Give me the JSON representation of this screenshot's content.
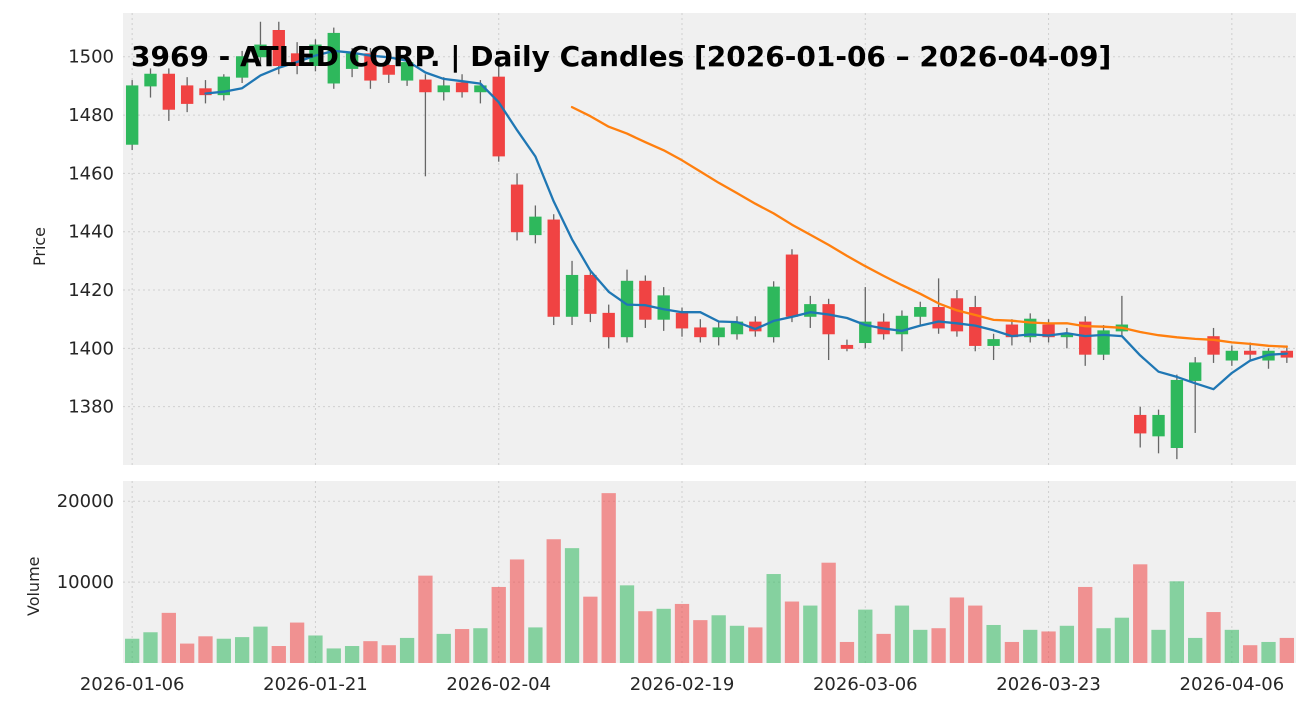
{
  "title": "3969 - ATLED CORP. | Daily Candles [2026-01-06 – 2026-04-09]",
  "price_axis_label": "Price",
  "volume_axis_label": "Volume",
  "colors": {
    "up": "#2eb85c",
    "down": "#f04343",
    "ma_short": "#1f77b4",
    "ma_long": "#ff7f0e",
    "grid": "#cfcfcf",
    "plot_bg": "#f0f0f0",
    "text": "#262626"
  },
  "chart_data": {
    "type": "candlestick",
    "title": "3969 - ATLED CORP. | Daily Candles [2026-01-06 – 2026-04-09]",
    "ylabel_price": "Price",
    "ylabel_volume": "Volume",
    "x_tick_labels": [
      "2026-01-06",
      "2026-01-21",
      "2026-02-04",
      "2026-02-19",
      "2026-03-06",
      "2026-03-23",
      "2026-04-06"
    ],
    "price_ticks": [
      1380,
      1400,
      1420,
      1440,
      1460,
      1480,
      1500
    ],
    "volume_ticks": [
      10000,
      20000
    ],
    "price_range": [
      1360,
      1515
    ],
    "volume_range": [
      0,
      22500
    ],
    "ma_short_window": 5,
    "ma_long_window": 25,
    "grid": true,
    "dates": [
      "2026-01-06",
      "2026-01-07",
      "2026-01-08",
      "2026-01-09",
      "2026-01-13",
      "2026-01-14",
      "2026-01-15",
      "2026-01-16",
      "2026-01-19",
      "2026-01-20",
      "2026-01-21",
      "2026-01-22",
      "2026-01-23",
      "2026-01-26",
      "2026-01-27",
      "2026-01-28",
      "2026-01-29",
      "2026-01-30",
      "2026-02-02",
      "2026-02-03",
      "2026-02-04",
      "2026-02-05",
      "2026-02-06",
      "2026-02-09",
      "2026-02-10",
      "2026-02-12",
      "2026-02-13",
      "2026-02-16",
      "2026-02-17",
      "2026-02-18",
      "2026-02-19",
      "2026-02-20",
      "2026-02-24",
      "2026-02-25",
      "2026-02-26",
      "2026-02-27",
      "2026-03-02",
      "2026-03-03",
      "2026-03-04",
      "2026-03-05",
      "2026-03-06",
      "2026-03-09",
      "2026-03-10",
      "2026-03-11",
      "2026-03-12",
      "2026-03-13",
      "2026-03-16",
      "2026-03-17",
      "2026-03-18",
      "2026-03-19",
      "2026-03-23",
      "2026-03-24",
      "2026-03-25",
      "2026-03-26",
      "2026-03-27",
      "2026-03-30",
      "2026-03-31",
      "2026-04-01",
      "2026-04-02",
      "2026-04-03",
      "2026-04-06",
      "2026-04-07",
      "2026-04-08",
      "2026-04-09"
    ],
    "ohlc": [
      [
        1470,
        1492,
        1468,
        1490
      ],
      [
        1490,
        1496,
        1486,
        1494
      ],
      [
        1494,
        1496,
        1478,
        1482
      ],
      [
        1490,
        1493,
        1481,
        1484
      ],
      [
        1489,
        1492,
        1484,
        1487
      ],
      [
        1487,
        1494,
        1485,
        1493
      ],
      [
        1493,
        1502,
        1491,
        1500
      ],
      [
        1500,
        1512,
        1497,
        1504
      ],
      [
        1509,
        1512,
        1494,
        1497
      ],
      [
        1501,
        1505,
        1494,
        1497
      ],
      [
        1497,
        1506,
        1495,
        1504
      ],
      [
        1491,
        1510,
        1489,
        1508
      ],
      [
        1496,
        1503,
        1493,
        1501
      ],
      [
        1501,
        1503,
        1489,
        1492
      ],
      [
        1497,
        1500,
        1491,
        1494
      ],
      [
        1492,
        1500,
        1490,
        1498
      ],
      [
        1492,
        1494,
        1459,
        1488
      ],
      [
        1488,
        1493,
        1485,
        1490
      ],
      [
        1491,
        1494,
        1486,
        1488
      ],
      [
        1488,
        1492,
        1484,
        1490
      ],
      [
        1493,
        1497,
        1464,
        1466
      ],
      [
        1456,
        1460,
        1437,
        1440
      ],
      [
        1439,
        1449,
        1436,
        1445
      ],
      [
        1444,
        1446,
        1408,
        1411
      ],
      [
        1411,
        1430,
        1408,
        1425
      ],
      [
        1425,
        1427,
        1409,
        1412
      ],
      [
        1412,
        1415,
        1400,
        1404
      ],
      [
        1404,
        1427,
        1402,
        1423
      ],
      [
        1423,
        1425,
        1407,
        1410
      ],
      [
        1410,
        1421,
        1406,
        1418
      ],
      [
        1412,
        1414,
        1404,
        1407
      ],
      [
        1407,
        1410,
        1402,
        1404
      ],
      [
        1404,
        1409,
        1401,
        1407
      ],
      [
        1405,
        1411,
        1403,
        1409
      ],
      [
        1409,
        1411,
        1404,
        1406
      ],
      [
        1404,
        1423,
        1402,
        1421
      ],
      [
        1432,
        1434,
        1409,
        1411
      ],
      [
        1411,
        1418,
        1407,
        1415
      ],
      [
        1415,
        1417,
        1396,
        1405
      ],
      [
        1401,
        1403,
        1399,
        1400
      ],
      [
        1402,
        1421,
        1400,
        1409
      ],
      [
        1409,
        1412,
        1403,
        1405
      ],
      [
        1405,
        1413,
        1399,
        1411
      ],
      [
        1411,
        1416,
        1408,
        1414
      ],
      [
        1414,
        1424,
        1405,
        1407
      ],
      [
        1417,
        1420,
        1404,
        1406
      ],
      [
        1414,
        1418,
        1399,
        1401
      ],
      [
        1401,
        1405,
        1396,
        1403
      ],
      [
        1408,
        1410,
        1401,
        1404
      ],
      [
        1404,
        1412,
        1402,
        1410
      ],
      [
        1408,
        1410,
        1402,
        1404
      ],
      [
        1404,
        1407,
        1400,
        1405
      ],
      [
        1409,
        1411,
        1394,
        1398
      ],
      [
        1398,
        1408,
        1396,
        1406
      ],
      [
        1406,
        1418,
        1404,
        1408
      ],
      [
        1377,
        1380,
        1366,
        1371
      ],
      [
        1370,
        1379,
        1364,
        1377
      ],
      [
        1366,
        1391,
        1362,
        1389
      ],
      [
        1389,
        1397,
        1371,
        1395
      ],
      [
        1404,
        1407,
        1395,
        1398
      ],
      [
        1396,
        1401,
        1394,
        1399
      ],
      [
        1399,
        1402,
        1396,
        1398
      ],
      [
        1396,
        1400,
        1393,
        1399
      ],
      [
        1399,
        1401,
        1395,
        1397
      ]
    ],
    "volume": [
      3000,
      3800,
      6200,
      2400,
      3300,
      3000,
      3200,
      4500,
      2100,
      5000,
      3400,
      1800,
      2100,
      2700,
      2200,
      3100,
      10800,
      3600,
      4200,
      4300,
      9400,
      12800,
      4400,
      15300,
      14200,
      8200,
      21000,
      9600,
      6400,
      6700,
      7300,
      5300,
      5900,
      4600,
      4400,
      11000,
      7600,
      7100,
      12400,
      2600,
      6600,
      3600,
      7100,
      4100,
      4300,
      8100,
      7100,
      4700,
      2600,
      4100,
      3900,
      4600,
      9400,
      4300,
      5600,
      12200,
      4100,
      10100,
      3100,
      6300,
      4100,
      2200,
      2600,
      3100
    ]
  }
}
